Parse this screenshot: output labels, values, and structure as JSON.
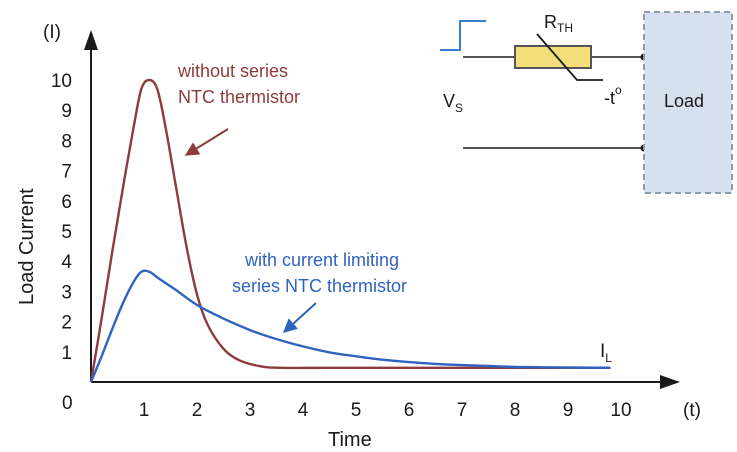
{
  "chart_data": {
    "type": "line",
    "xlabel": "Time",
    "ylabel": "Load Current",
    "x_unit": "(t)",
    "y_unit": "(I)",
    "origin_label": "0",
    "x_ticks": [
      "1",
      "2",
      "3",
      "4",
      "5",
      "6",
      "7",
      "8",
      "9",
      "10"
    ],
    "y_ticks": [
      "1",
      "2",
      "3",
      "4",
      "5",
      "6",
      "7",
      "8",
      "9",
      "10"
    ],
    "xlim": [
      0,
      10.5
    ],
    "ylim": [
      0,
      11
    ],
    "series": [
      {
        "color": "#8e3b3b",
        "points": [
          [
            0,
            0
          ],
          [
            0.2,
            2.1
          ],
          [
            0.4,
            4.3
          ],
          [
            0.6,
            6.4
          ],
          [
            0.8,
            8.4
          ],
          [
            0.95,
            9.7
          ],
          [
            1.1,
            10.0
          ],
          [
            1.25,
            9.7
          ],
          [
            1.4,
            8.5
          ],
          [
            1.6,
            6.5
          ],
          [
            1.8,
            4.5
          ],
          [
            2.0,
            2.9
          ],
          [
            2.2,
            1.9
          ],
          [
            2.5,
            1.1
          ],
          [
            2.8,
            0.72
          ],
          [
            3.2,
            0.52
          ],
          [
            3.6,
            0.47
          ],
          [
            4.5,
            0.47
          ],
          [
            6,
            0.47
          ],
          [
            7,
            0.47
          ],
          [
            8,
            0.47
          ],
          [
            9,
            0.47
          ],
          [
            9.8,
            0.47
          ]
        ]
      },
      {
        "color": "#2f63c0",
        "points": [
          [
            0,
            0
          ],
          [
            0.2,
            0.85
          ],
          [
            0.4,
            1.75
          ],
          [
            0.6,
            2.6
          ],
          [
            0.8,
            3.3
          ],
          [
            0.95,
            3.65
          ],
          [
            1.1,
            3.65
          ],
          [
            1.3,
            3.4
          ],
          [
            1.6,
            3.05
          ],
          [
            2,
            2.55
          ],
          [
            2.5,
            2.1
          ],
          [
            3,
            1.72
          ],
          [
            3.5,
            1.42
          ],
          [
            4,
            1.18
          ],
          [
            4.5,
            0.98
          ],
          [
            5,
            0.85
          ],
          [
            5.5,
            0.74
          ],
          [
            6,
            0.66
          ],
          [
            6.5,
            0.6
          ],
          [
            7,
            0.56
          ],
          [
            7.5,
            0.53
          ],
          [
            8,
            0.5
          ],
          [
            9,
            0.48
          ],
          [
            9.8,
            0.47
          ]
        ]
      }
    ]
  },
  "annotations": {
    "without_line1": "without series",
    "without_line2": "NTC thermistor",
    "with_line1": "with current limiting",
    "with_line2": "series NTC thermistor",
    "il_main": "I",
    "il_sub": "L"
  },
  "circuit": {
    "rth_main": "R",
    "rth_sub": "TH",
    "temp_main": "-t",
    "temp_sup": "o",
    "vs_main": "V",
    "vs_sub": "S",
    "load": "Load"
  },
  "colors": {
    "axis": "#1a1a1a",
    "resistor_fill": "#f2df7a",
    "load_fill": "#d6e0ef",
    "load_border": "#8d9cab"
  }
}
